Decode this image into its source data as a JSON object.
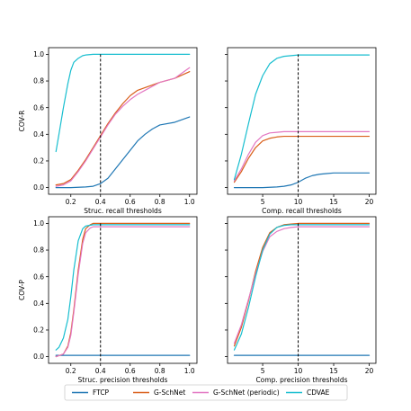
{
  "colors": {
    "FTCP": "#1f77b4",
    "G-SchNet": "#d95f1a",
    "G-SchNet (periodic)": "#e377c2",
    "CDVAE": "#17becf"
  },
  "legend": {
    "entries": [
      "FTCP",
      "G-SchNet",
      "G-SchNet (periodic)",
      "CDVAE"
    ],
    "placement": "bottom-center"
  },
  "chart_data": [
    {
      "type": "line",
      "panel": "top-left",
      "xlabel": "Struc. recall thresholds",
      "ylabel": "COV-R",
      "xlim": [
        0.05,
        1.05
      ],
      "ylim": [
        -0.05,
        1.05
      ],
      "xticks": [
        0.2,
        0.4,
        0.6,
        0.8,
        1.0
      ],
      "xtick_labels": [
        "0.2",
        "0.4",
        "0.6",
        "0.8",
        "1.0"
      ],
      "yticks": [
        0.0,
        0.2,
        0.4,
        0.6,
        0.8,
        1.0
      ],
      "ytick_labels": [
        "0.0",
        "0.2",
        "0.4",
        "0.6",
        "0.8",
        "1.0"
      ],
      "show_yticklabels": true,
      "threshold": 0.4,
      "series": [
        {
          "name": "FTCP",
          "x": [
            0.1,
            0.2,
            0.3,
            0.35,
            0.4,
            0.45,
            0.5,
            0.55,
            0.6,
            0.65,
            0.7,
            0.75,
            0.8,
            0.9,
            1.0
          ],
          "y": [
            0.0,
            0.0,
            0.005,
            0.01,
            0.03,
            0.07,
            0.14,
            0.21,
            0.28,
            0.35,
            0.4,
            0.44,
            0.47,
            0.49,
            0.53
          ]
        },
        {
          "name": "G-SchNet",
          "x": [
            0.1,
            0.15,
            0.2,
            0.25,
            0.3,
            0.35,
            0.4,
            0.45,
            0.5,
            0.55,
            0.6,
            0.65,
            0.7,
            0.8,
            0.9,
            1.0
          ],
          "y": [
            0.02,
            0.03,
            0.06,
            0.13,
            0.21,
            0.3,
            0.39,
            0.48,
            0.56,
            0.63,
            0.69,
            0.73,
            0.75,
            0.79,
            0.82,
            0.87
          ]
        },
        {
          "name": "G-SchNet (periodic)",
          "x": [
            0.1,
            0.15,
            0.2,
            0.25,
            0.3,
            0.35,
            0.4,
            0.45,
            0.5,
            0.55,
            0.6,
            0.65,
            0.7,
            0.8,
            0.9,
            0.95,
            1.0
          ],
          "y": [
            0.01,
            0.02,
            0.05,
            0.12,
            0.2,
            0.29,
            0.38,
            0.47,
            0.55,
            0.61,
            0.66,
            0.7,
            0.73,
            0.79,
            0.82,
            0.86,
            0.9
          ]
        },
        {
          "name": "CDVAE",
          "x": [
            0.1,
            0.12,
            0.15,
            0.18,
            0.2,
            0.22,
            0.25,
            0.28,
            0.3,
            0.35,
            0.4,
            0.5,
            0.6,
            0.8,
            1.0
          ],
          "y": [
            0.27,
            0.4,
            0.6,
            0.78,
            0.88,
            0.94,
            0.97,
            0.99,
            0.995,
            1.0,
            1.0,
            1.0,
            1.0,
            1.0,
            1.0
          ]
        }
      ]
    },
    {
      "type": "line",
      "panel": "top-right",
      "xlabel": "Comp. recall thresholds",
      "ylabel": "",
      "xlim": [
        0.05,
        20.95
      ],
      "ylim": [
        -0.05,
        1.05
      ],
      "xticks": [
        5,
        10,
        15,
        20
      ],
      "xtick_labels": [
        "5",
        "10",
        "15",
        "20"
      ],
      "yticks": [
        0.0,
        0.2,
        0.4,
        0.6,
        0.8,
        1.0
      ],
      "show_yticklabels": false,
      "threshold": 10,
      "series": [
        {
          "name": "FTCP",
          "x": [
            1,
            3,
            5,
            7,
            8,
            9,
            10,
            11,
            12,
            13,
            14,
            15,
            17,
            20
          ],
          "y": [
            0.0,
            0.0,
            0.0,
            0.005,
            0.01,
            0.02,
            0.04,
            0.07,
            0.09,
            0.1,
            0.105,
            0.11,
            0.11,
            0.11
          ]
        },
        {
          "name": "G-SchNet",
          "x": [
            1,
            2,
            3,
            4,
            5,
            6,
            7,
            8,
            9,
            10,
            12,
            15,
            20
          ],
          "y": [
            0.04,
            0.12,
            0.22,
            0.3,
            0.35,
            0.37,
            0.38,
            0.385,
            0.385,
            0.385,
            0.385,
            0.385,
            0.385
          ]
        },
        {
          "name": "G-SchNet (periodic)",
          "x": [
            1,
            2,
            3,
            4,
            5,
            6,
            7,
            8,
            9,
            10,
            12,
            15,
            20
          ],
          "y": [
            0.05,
            0.14,
            0.25,
            0.34,
            0.39,
            0.41,
            0.415,
            0.42,
            0.42,
            0.42,
            0.42,
            0.42,
            0.42
          ]
        },
        {
          "name": "CDVAE",
          "x": [
            1,
            2,
            3,
            4,
            5,
            6,
            7,
            8,
            9,
            10,
            12,
            15,
            20
          ],
          "y": [
            0.06,
            0.25,
            0.48,
            0.7,
            0.84,
            0.93,
            0.97,
            0.985,
            0.99,
            0.995,
            0.995,
            0.995,
            0.995
          ]
        }
      ]
    },
    {
      "type": "line",
      "panel": "bottom-left",
      "xlabel": "Struc. precision thresholds",
      "ylabel": "COV-P",
      "xlim": [
        0.05,
        1.05
      ],
      "ylim": [
        -0.05,
        1.05
      ],
      "xticks": [
        0.2,
        0.4,
        0.6,
        0.8,
        1.0
      ],
      "xtick_labels": [
        "0.2",
        "0.4",
        "0.6",
        "0.8",
        "1.0"
      ],
      "yticks": [
        0.0,
        0.2,
        0.4,
        0.6,
        0.8,
        1.0
      ],
      "ytick_labels": [
        "0.0",
        "0.2",
        "0.4",
        "0.6",
        "0.8",
        "1.0"
      ],
      "show_yticklabels": true,
      "threshold": 0.4,
      "series": [
        {
          "name": "FTCP",
          "x": [
            0.1,
            0.4,
            0.7,
            1.0
          ],
          "y": [
            0.01,
            0.01,
            0.01,
            0.01
          ]
        },
        {
          "name": "G-SchNet",
          "x": [
            0.1,
            0.15,
            0.18,
            0.2,
            0.22,
            0.25,
            0.28,
            0.3,
            0.33,
            0.35,
            0.4,
            0.6,
            0.8,
            1.0
          ],
          "y": [
            0.0,
            0.02,
            0.08,
            0.18,
            0.35,
            0.65,
            0.88,
            0.96,
            0.99,
            1.0,
            1.0,
            1.0,
            1.0,
            1.0
          ]
        },
        {
          "name": "G-SchNet (periodic)",
          "x": [
            0.1,
            0.15,
            0.18,
            0.2,
            0.22,
            0.25,
            0.28,
            0.3,
            0.33,
            0.35,
            0.4,
            0.6,
            0.8,
            1.0
          ],
          "y": [
            0.0,
            0.02,
            0.07,
            0.16,
            0.33,
            0.62,
            0.85,
            0.93,
            0.965,
            0.975,
            0.975,
            0.975,
            0.975,
            0.975
          ]
        },
        {
          "name": "CDVAE",
          "x": [
            0.1,
            0.12,
            0.15,
            0.18,
            0.2,
            0.22,
            0.25,
            0.28,
            0.3,
            0.35,
            0.4,
            0.6,
            0.8,
            1.0
          ],
          "y": [
            0.05,
            0.07,
            0.14,
            0.28,
            0.45,
            0.65,
            0.87,
            0.96,
            0.98,
            0.99,
            0.99,
            0.99,
            0.99,
            0.99
          ]
        }
      ]
    },
    {
      "type": "line",
      "panel": "bottom-right",
      "xlabel": "Comp. precision thresholds",
      "ylabel": "",
      "xlim": [
        0.05,
        20.95
      ],
      "ylim": [
        -0.05,
        1.05
      ],
      "xticks": [
        5,
        10,
        15,
        20
      ],
      "xtick_labels": [
        "5",
        "10",
        "15",
        "20"
      ],
      "yticks": [
        0.0,
        0.2,
        0.4,
        0.6,
        0.8,
        1.0
      ],
      "show_yticklabels": false,
      "threshold": 10,
      "series": [
        {
          "name": "FTCP",
          "x": [
            1,
            10,
            20
          ],
          "y": [
            0.01,
            0.01,
            0.01
          ]
        },
        {
          "name": "G-SchNet",
          "x": [
            1,
            2,
            3,
            4,
            5,
            6,
            7,
            8,
            9,
            10,
            12,
            15,
            20
          ],
          "y": [
            0.08,
            0.22,
            0.42,
            0.64,
            0.82,
            0.93,
            0.97,
            0.99,
            0.995,
            1.0,
            1.0,
            1.0,
            1.0
          ]
        },
        {
          "name": "G-SchNet (periodic)",
          "x": [
            1,
            2,
            3,
            4,
            5,
            6,
            7,
            8,
            9,
            10,
            12,
            15,
            20
          ],
          "y": [
            0.1,
            0.24,
            0.43,
            0.62,
            0.79,
            0.9,
            0.94,
            0.96,
            0.97,
            0.975,
            0.975,
            0.975,
            0.975
          ]
        },
        {
          "name": "CDVAE",
          "x": [
            1,
            2,
            3,
            4,
            5,
            6,
            7,
            8,
            9,
            10,
            12,
            15,
            20
          ],
          "y": [
            0.05,
            0.17,
            0.37,
            0.6,
            0.8,
            0.92,
            0.97,
            0.985,
            0.99,
            0.99,
            0.99,
            0.99,
            0.99
          ]
        }
      ]
    }
  ]
}
